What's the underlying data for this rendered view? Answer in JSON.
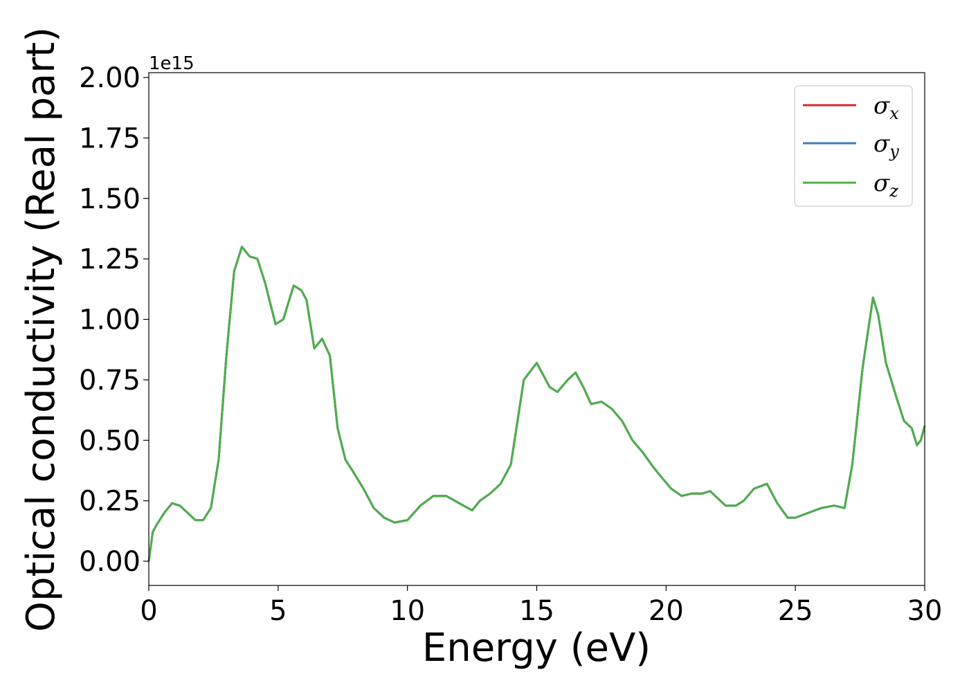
{
  "chart_data": {
    "type": "line",
    "title": "",
    "xlabel": "Energy (eV)",
    "ylabel": "Optical conductivity (Real part)",
    "y_offset_label": "1e15",
    "xlim": [
      0,
      30
    ],
    "ylim": [
      -0.1,
      2.02
    ],
    "x_ticks": [
      0,
      5,
      10,
      15,
      20,
      25,
      30
    ],
    "x_tick_labels": [
      "0",
      "5",
      "10",
      "15",
      "20",
      "25",
      "30"
    ],
    "y_ticks": [
      0,
      0.25,
      0.5,
      0.75,
      1.0,
      1.25,
      1.5,
      1.75,
      2.0
    ],
    "y_tick_labels": [
      "0.00",
      "0.25",
      "0.50",
      "0.75",
      "1.00",
      "1.25",
      "1.50",
      "1.75",
      "2.00"
    ],
    "grid": false,
    "legend_position": "top-right",
    "x": [
      0,
      0.15,
      0.3,
      0.6,
      0.9,
      1.2,
      1.5,
      1.8,
      2.1,
      2.4,
      2.7,
      3.0,
      3.3,
      3.6,
      3.9,
      4.2,
      4.5,
      4.9,
      5.2,
      5.6,
      5.9,
      6.1,
      6.4,
      6.7,
      7.0,
      7.3,
      7.6,
      7.9,
      8.3,
      8.7,
      9.1,
      9.5,
      10.0,
      10.5,
      11.0,
      11.5,
      12.0,
      12.5,
      12.8,
      13.2,
      13.6,
      14.0,
      14.5,
      15.0,
      15.5,
      15.8,
      16.2,
      16.5,
      16.8,
      17.1,
      17.5,
      17.9,
      18.3,
      18.7,
      19.1,
      19.5,
      19.8,
      20.2,
      20.6,
      21.0,
      21.4,
      21.7,
      22.0,
      22.3,
      22.7,
      23.0,
      23.4,
      23.9,
      24.3,
      24.7,
      25.0,
      25.5,
      26.0,
      26.5,
      26.9,
      27.2,
      27.6,
      28.0,
      28.2,
      28.5,
      28.9,
      29.2,
      29.5,
      29.7,
      29.85,
      30.0
    ],
    "series": [
      {
        "name": "σx",
        "values": [
          0.0,
          0.12,
          0.15,
          0.2,
          0.24,
          0.23,
          0.2,
          0.17,
          0.17,
          0.22,
          0.42,
          0.85,
          1.2,
          1.3,
          1.26,
          1.25,
          1.15,
          0.98,
          1.0,
          1.14,
          1.12,
          1.08,
          0.88,
          0.92,
          0.85,
          0.55,
          0.42,
          0.37,
          0.3,
          0.22,
          0.18,
          0.16,
          0.17,
          0.23,
          0.27,
          0.27,
          0.24,
          0.21,
          0.25,
          0.28,
          0.32,
          0.4,
          0.75,
          0.82,
          0.72,
          0.7,
          0.75,
          0.78,
          0.72,
          0.65,
          0.66,
          0.63,
          0.58,
          0.5,
          0.45,
          0.39,
          0.35,
          0.3,
          0.27,
          0.28,
          0.28,
          0.29,
          0.26,
          0.23,
          0.23,
          0.25,
          0.3,
          0.32,
          0.24,
          0.18,
          0.18,
          0.2,
          0.22,
          0.23,
          0.22,
          0.4,
          0.8,
          1.09,
          1.02,
          0.82,
          0.68,
          0.58,
          0.55,
          0.48,
          0.5,
          0.56
        ]
      },
      {
        "name": "σy",
        "values": [
          0.0,
          0.12,
          0.15,
          0.2,
          0.24,
          0.23,
          0.2,
          0.17,
          0.17,
          0.22,
          0.42,
          0.85,
          1.2,
          1.3,
          1.26,
          1.25,
          1.15,
          0.98,
          1.0,
          1.14,
          1.12,
          1.08,
          0.88,
          0.92,
          0.85,
          0.55,
          0.42,
          0.37,
          0.3,
          0.22,
          0.18,
          0.16,
          0.17,
          0.23,
          0.27,
          0.27,
          0.24,
          0.21,
          0.25,
          0.28,
          0.32,
          0.4,
          0.75,
          0.82,
          0.72,
          0.7,
          0.75,
          0.78,
          0.72,
          0.65,
          0.66,
          0.63,
          0.58,
          0.5,
          0.45,
          0.39,
          0.35,
          0.3,
          0.27,
          0.28,
          0.28,
          0.29,
          0.26,
          0.23,
          0.23,
          0.25,
          0.3,
          0.32,
          0.24,
          0.18,
          0.18,
          0.2,
          0.22,
          0.23,
          0.22,
          0.4,
          0.8,
          1.09,
          1.02,
          0.82,
          0.68,
          0.58,
          0.55,
          0.48,
          0.5,
          0.56
        ]
      },
      {
        "name": "σz",
        "values": [
          0.0,
          0.12,
          0.15,
          0.2,
          0.24,
          0.23,
          0.2,
          0.17,
          0.17,
          0.22,
          0.42,
          0.85,
          1.2,
          1.3,
          1.26,
          1.25,
          1.15,
          0.98,
          1.0,
          1.14,
          1.12,
          1.08,
          0.88,
          0.92,
          0.85,
          0.55,
          0.42,
          0.37,
          0.3,
          0.22,
          0.18,
          0.16,
          0.17,
          0.23,
          0.27,
          0.27,
          0.24,
          0.21,
          0.25,
          0.28,
          0.32,
          0.4,
          0.75,
          0.82,
          0.72,
          0.7,
          0.75,
          0.78,
          0.72,
          0.65,
          0.66,
          0.63,
          0.58,
          0.5,
          0.45,
          0.39,
          0.35,
          0.3,
          0.27,
          0.28,
          0.28,
          0.29,
          0.26,
          0.23,
          0.23,
          0.25,
          0.3,
          0.32,
          0.24,
          0.18,
          0.18,
          0.2,
          0.22,
          0.23,
          0.22,
          0.4,
          0.8,
          1.09,
          1.02,
          0.82,
          0.68,
          0.58,
          0.55,
          0.48,
          0.5,
          0.56
        ]
      }
    ],
    "legend": [
      {
        "base": "σ",
        "sub": "x",
        "color": "#d62728"
      },
      {
        "base": "σ",
        "sub": "y",
        "color": "#3a7fbd"
      },
      {
        "base": "σ",
        "sub": "z",
        "color": "#4daf4a"
      }
    ]
  }
}
